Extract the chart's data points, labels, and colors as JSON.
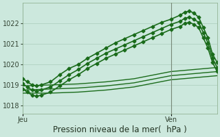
{
  "xlabel": "Pression niveau de la mer(  hPa )",
  "bg_color": "#cce8dd",
  "grid_color": "#aaccbb",
  "line_color": "#1a6b1a",
  "xtick_labels": [
    "Jeu",
    "Ven"
  ],
  "xtick_positions": [
    0,
    16
  ],
  "ylim": [
    1017.6,
    1023.0
  ],
  "yticks": [
    1018,
    1019,
    1020,
    1021,
    1022
  ],
  "xlim": [
    0,
    21
  ],
  "vline_x": 16,
  "vline_color": "#778877",
  "xlabel_fontsize": 8.5,
  "series": [
    {
      "x": [
        0,
        0.5,
        1,
        1.5,
        2,
        3,
        4,
        5,
        6,
        7,
        8,
        9,
        10,
        11,
        12,
        13,
        14,
        15,
        16,
        17,
        17.5,
        18,
        18.5,
        19,
        19.5,
        20,
        20.5,
        21
      ],
      "y": [
        1019.3,
        1019.15,
        1019.0,
        1018.95,
        1019.0,
        1019.15,
        1019.5,
        1019.8,
        1020.0,
        1020.3,
        1020.55,
        1020.8,
        1021.05,
        1021.25,
        1021.45,
        1021.65,
        1021.85,
        1022.05,
        1022.2,
        1022.4,
        1022.55,
        1022.6,
        1022.5,
        1022.3,
        1021.8,
        1021.3,
        1020.5,
        1020.1
      ],
      "marker": "D",
      "markersize": 2.5,
      "linewidth": 1.2,
      "zorder": 5
    },
    {
      "x": [
        0,
        0.5,
        1,
        1.5,
        2,
        3,
        4,
        5,
        6,
        7,
        8,
        9,
        10,
        11,
        12,
        13,
        14,
        15,
        16,
        17,
        17.5,
        18,
        18.5,
        19,
        19.5,
        20,
        20.5,
        21
      ],
      "y": [
        1019.05,
        1018.9,
        1018.75,
        1018.7,
        1018.75,
        1018.9,
        1019.2,
        1019.5,
        1019.75,
        1020.05,
        1020.3,
        1020.55,
        1020.75,
        1020.95,
        1021.15,
        1021.35,
        1021.55,
        1021.75,
        1021.95,
        1022.1,
        1022.25,
        1022.3,
        1022.2,
        1022.05,
        1021.55,
        1021.05,
        1020.3,
        1019.85
      ],
      "marker": "D",
      "markersize": 2.5,
      "linewidth": 1.2,
      "zorder": 5
    },
    {
      "x": [
        0,
        0.5,
        1,
        1.5,
        2,
        3,
        4,
        5,
        6,
        7,
        8,
        9,
        10,
        11,
        12,
        13,
        14,
        15,
        16,
        17,
        17.5,
        18,
        18.5,
        19,
        19.5,
        20,
        20.5,
        21
      ],
      "y": [
        1018.8,
        1018.65,
        1018.5,
        1018.45,
        1018.5,
        1018.65,
        1018.95,
        1019.25,
        1019.5,
        1019.8,
        1020.05,
        1020.3,
        1020.5,
        1020.7,
        1020.9,
        1021.1,
        1021.3,
        1021.5,
        1021.7,
        1021.85,
        1022.0,
        1022.05,
        1021.95,
        1021.8,
        1021.3,
        1020.8,
        1020.1,
        1019.65
      ],
      "marker": "D",
      "markersize": 2.5,
      "linewidth": 1.2,
      "zorder": 5
    },
    {
      "x": [
        0,
        3,
        6,
        9,
        12,
        16,
        21
      ],
      "y": [
        1018.95,
        1019.0,
        1019.05,
        1019.15,
        1019.3,
        1019.65,
        1019.85
      ],
      "marker": null,
      "markersize": 0,
      "linewidth": 1.0,
      "zorder": 3
    },
    {
      "x": [
        0,
        3,
        6,
        9,
        12,
        16,
        21
      ],
      "y": [
        1018.75,
        1018.8,
        1018.85,
        1018.95,
        1019.1,
        1019.45,
        1019.65
      ],
      "marker": null,
      "markersize": 0,
      "linewidth": 1.0,
      "zorder": 3
    },
    {
      "x": [
        0,
        3,
        6,
        9,
        12,
        16,
        21
      ],
      "y": [
        1018.6,
        1018.6,
        1018.65,
        1018.75,
        1018.9,
        1019.25,
        1019.45
      ],
      "marker": null,
      "markersize": 0,
      "linewidth": 1.0,
      "zorder": 3
    }
  ]
}
